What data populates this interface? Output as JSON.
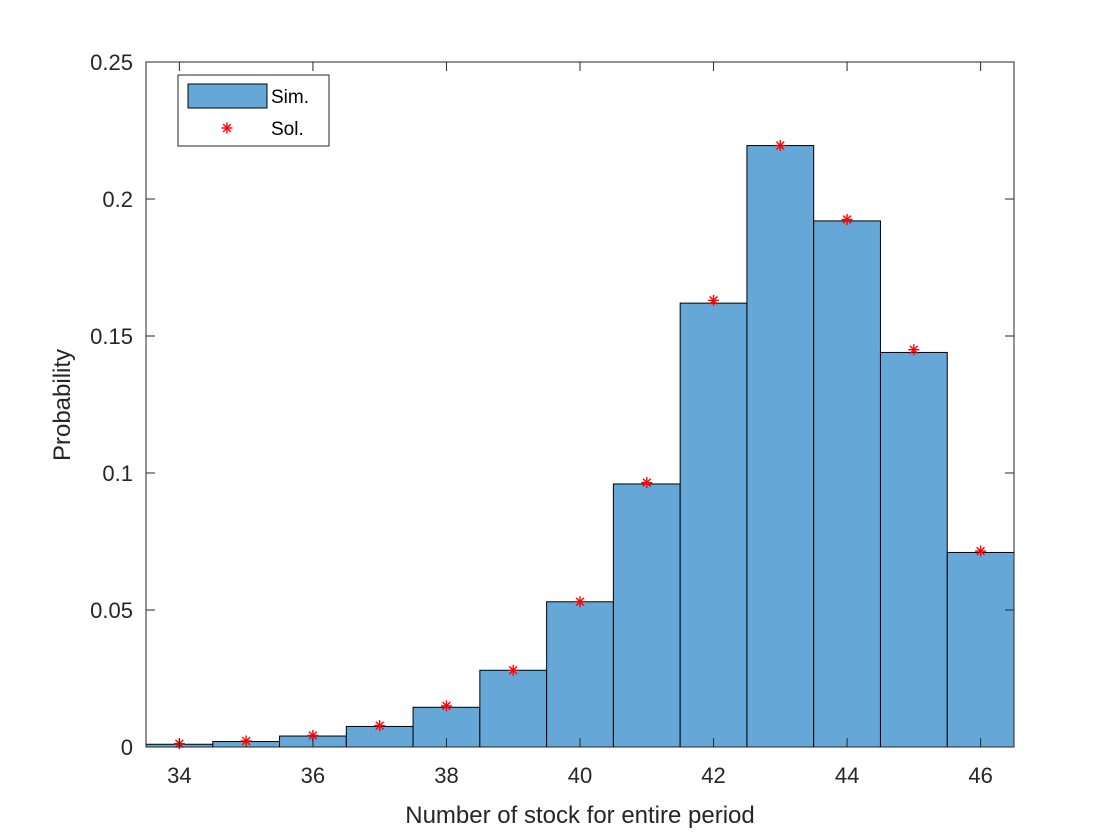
{
  "chart_data": {
    "type": "bar",
    "xlabel": "Number of stock for entire period",
    "ylabel": "Probability",
    "xlim": [
      33.5,
      46.5
    ],
    "ylim": [
      0,
      0.25
    ],
    "x_ticks": [
      "34",
      "36",
      "38",
      "40",
      "42",
      "44",
      "46"
    ],
    "y_ticks": [
      "0",
      "0.05",
      "0.1",
      "0.15",
      "0.2",
      "0.25"
    ],
    "grid": false,
    "legend_position": "top-left",
    "categories": [
      34,
      35,
      36,
      37,
      38,
      39,
      40,
      41,
      42,
      43,
      44,
      45,
      46
    ],
    "series": [
      {
        "name": "Sim.",
        "kind": "histogram",
        "color": "#65a8d7",
        "values": [
          0.001,
          0.002,
          0.004,
          0.0075,
          0.0145,
          0.028,
          0.053,
          0.096,
          0.162,
          0.2195,
          0.192,
          0.144,
          0.071
        ]
      },
      {
        "name": "Sol.",
        "kind": "markers",
        "marker": "asterisk",
        "color": "#ff0000",
        "values": [
          0.0012,
          0.0022,
          0.0042,
          0.0078,
          0.015,
          0.028,
          0.053,
          0.0965,
          0.163,
          0.2195,
          0.1925,
          0.145,
          0.0715
        ]
      }
    ]
  }
}
